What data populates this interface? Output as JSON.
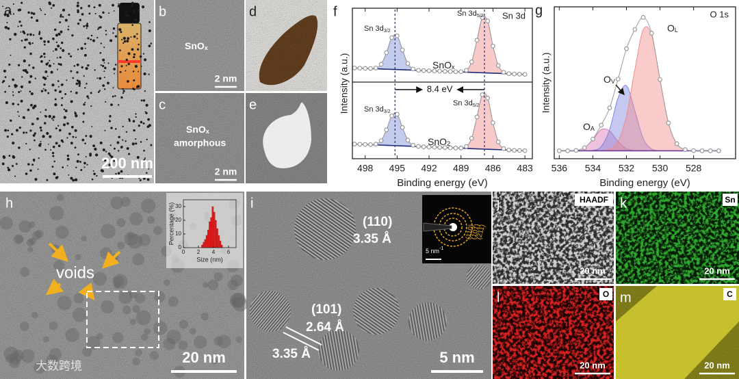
{
  "figure": {
    "a": {
      "label": "a.",
      "scale_bar": "200 nm"
    },
    "b": {
      "label": "b",
      "text": {
        "text": "SnO",
        "sub": "x"
      },
      "scale_bar": "2 nm"
    },
    "c": {
      "label": "c",
      "text": {
        "text": "SnO",
        "sub": "x"
      },
      "line2": "amorphous",
      "scale_bar": "2 nm"
    },
    "d": {
      "label": "d"
    },
    "e": {
      "label": "e"
    },
    "h": {
      "label": "h",
      "annotation": "voids",
      "scale_bar": "20 nm"
    },
    "i": {
      "label": "i",
      "planes": [
        {
          "hkl": "(110)",
          "d": "3.35 Å"
        },
        {
          "hkl": "(101)",
          "d": "2.64 Å"
        },
        {
          "d": "3.35 Å"
        }
      ],
      "scale_bar": "5 nm",
      "saed": {
        "rings": [
          "(211)",
          "(101)",
          "(110)"
        ],
        "scale_bar": {
          "text": "5 nm",
          "sup": "-1"
        }
      }
    },
    "j": {
      "label": "j",
      "element": "HAADF",
      "scale_bar": "20 nm"
    },
    "k": {
      "label": "k",
      "element": "Sn",
      "scale_bar": "20 nm"
    },
    "l": {
      "label": "l",
      "element": "O",
      "scale_bar": "20 nm"
    },
    "m": {
      "label": "m",
      "element": "C",
      "scale_bar": "20 nm"
    }
  },
  "watermark": "大数跨境",
  "chart_data": [
    {
      "type": "xps",
      "panel_label": "f",
      "title": "Sn 3d",
      "xlabel": "Binding energy (eV)",
      "ylabel": "Intensity (a.u.)",
      "xlim": [
        499.2,
        482.3
      ],
      "xticks": [
        498,
        495,
        492,
        489,
        486,
        483
      ],
      "x": [
        499,
        498.5,
        498,
        497.5,
        497,
        496.5,
        496,
        495.5,
        495,
        494.5,
        494,
        493.5,
        493,
        492.5,
        492,
        491.5,
        491,
        490.5,
        490,
        489.5,
        489,
        488.5,
        488,
        487.5,
        487,
        486.5,
        486,
        485.5,
        485,
        484.5,
        484,
        483.5,
        483
      ],
      "shift": {
        "text": "8.4 eV",
        "peak_positions": [
          495.2,
          486.8
        ]
      },
      "subplots": [
        {
          "label": {
            "text": "SnO",
            "sub": "x"
          },
          "peak_labels": [
            {
              "text": "Sn 3d",
              "sub": "3/2"
            },
            {
              "text": "Sn 3d",
              "sub": "5/2"
            }
          ],
          "ylim": [
            -0.1,
            1.05
          ],
          "series": [
            {
              "style": "line",
              "color": "#1f2a7a",
              "values": [
                0.12,
                0.117,
                0.114,
                0.111,
                0.108,
                0.104,
                0.101,
                0.098,
                0.095,
                0.092,
                0.089,
                0.086,
                0.082,
                0.079,
                0.076,
                0.073,
                0.07,
                0.067,
                0.064,
                0.061,
                0.058,
                0.054,
                0.051,
                0.048,
                0.045,
                0.042,
                0.039,
                0.036,
                0.033,
                0.029,
                0.026,
                0.023,
                0.02
              ]
            },
            {
              "style": "fill",
              "color": "#7b8fd8",
              "values": [
                0,
                0,
                0,
                0.001,
                0.012,
                0.074,
                0.258,
                0.494,
                0.525,
                0.308,
                0.1,
                0.018,
                0.002,
                0,
                0,
                0,
                0,
                0,
                0,
                0,
                0,
                0,
                0,
                0,
                0,
                0,
                0,
                0,
                0,
                0,
                0,
                0,
                0
              ]
            },
            {
              "style": "fill",
              "color": "#ef8a8a",
              "values": [
                0,
                0,
                0,
                0,
                0,
                0,
                0,
                0,
                0,
                0,
                0,
                0,
                0,
                0,
                0,
                0,
                0,
                0,
                0,
                0,
                0.003,
                0.03,
                0.164,
                0.504,
                0.859,
                0.809,
                0.422,
                0.122,
                0.02,
                0.002,
                0,
                0,
                0
              ]
            },
            {
              "style": "points",
              "color": "#9a9a9a",
              "values": [
                0.12,
                0.117,
                0.114,
                0.112,
                0.12,
                0.178,
                0.359,
                0.592,
                0.62,
                0.4,
                0.189,
                0.104,
                0.084,
                0.079,
                0.076,
                0.073,
                0.07,
                0.067,
                0.064,
                0.061,
                0.061,
                0.084,
                0.215,
                0.552,
                0.904,
                0.851,
                0.461,
                0.158,
                0.053,
                0.031,
                0.026,
                0.023,
                0.02
              ]
            }
          ]
        },
        {
          "label": {
            "text": "SnO",
            "sub": "2"
          },
          "peak_labels": [
            {
              "text": "Sn 3d",
              "sub": "3/2"
            },
            {
              "text": "Sn 3d",
              "sub": "5/2"
            }
          ],
          "ylim": [
            -0.1,
            1.05
          ],
          "series": [
            {
              "style": "line",
              "color": "#1f2a7a",
              "values": [
                0.12,
                0.117,
                0.114,
                0.111,
                0.108,
                0.104,
                0.101,
                0.098,
                0.095,
                0.092,
                0.089,
                0.086,
                0.082,
                0.079,
                0.076,
                0.073,
                0.07,
                0.067,
                0.064,
                0.061,
                0.058,
                0.054,
                0.051,
                0.048,
                0.045,
                0.042,
                0.039,
                0.036,
                0.033,
                0.029,
                0.026,
                0.023,
                0.02
              ]
            },
            {
              "style": "fill",
              "color": "#7b8fd8",
              "values": [
                0,
                0,
                0,
                0.001,
                0.011,
                0.067,
                0.232,
                0.445,
                0.473,
                0.277,
                0.09,
                0.016,
                0.002,
                0,
                0,
                0,
                0,
                0,
                0,
                0,
                0,
                0,
                0,
                0,
                0,
                0,
                0,
                0,
                0,
                0,
                0,
                0,
                0
              ]
            },
            {
              "style": "fill",
              "color": "#ef8a8a",
              "values": [
                0,
                0,
                0,
                0,
                0,
                0,
                0,
                0,
                0,
                0,
                0,
                0,
                0,
                0,
                0,
                0,
                0,
                0,
                0,
                0,
                0.003,
                0.029,
                0.156,
                0.479,
                0.816,
                0.769,
                0.401,
                0.116,
                0.019,
                0.002,
                0,
                0,
                0
              ]
            },
            {
              "style": "points",
              "color": "#9a9a9a",
              "values": [
                0.12,
                0.117,
                0.114,
                0.112,
                0.119,
                0.171,
                0.333,
                0.543,
                0.568,
                0.369,
                0.179,
                0.102,
                0.084,
                0.079,
                0.076,
                0.073,
                0.07,
                0.067,
                0.064,
                0.061,
                0.061,
                0.083,
                0.207,
                0.527,
                0.861,
                0.811,
                0.44,
                0.152,
                0.052,
                0.031,
                0.026,
                0.023,
                0.02
              ]
            }
          ]
        }
      ]
    },
    {
      "type": "xps",
      "panel_label": "g",
      "title": "O 1s",
      "xlabel": "Binding energy (eV)",
      "ylabel": "Intensity (a.u.)",
      "xlim": [
        536.3,
        525.5
      ],
      "xticks": [
        536,
        534,
        532,
        530,
        528
      ],
      "x": [
        536,
        535.5,
        535,
        534.5,
        534,
        533.5,
        533,
        532.5,
        532,
        531.5,
        531,
        530.5,
        530,
        529.5,
        529,
        528.5,
        528,
        527.5,
        527,
        526.5
      ],
      "subplots": [
        {
          "peak_labels": [
            {
              "text": "O",
              "sub": "A"
            },
            {
              "text": "O",
              "sub": "V"
            },
            {
              "text": "O",
              "sub": "L"
            }
          ],
          "ylim": [
            -0.03,
            1.12
          ],
          "series": [
            {
              "style": "line",
              "color": "#6a3d9a",
              "values": [
                0.03,
                0.03,
                0.03,
                0.03,
                0.03,
                0.03,
                0.03,
                0.03,
                0.03,
                0.03,
                0.03,
                0.03,
                0.03,
                0.03,
                0.03,
                0.03,
                0.03,
                0.03,
                0.03,
                0.03
              ]
            },
            {
              "style": "fill",
              "color": "#d977b5",
              "values": [
                0,
                0,
                0.003,
                0.023,
                0.086,
                0.161,
                0.15,
                0.07,
                0.016,
                0.002,
                0,
                0,
                0,
                0,
                0,
                0,
                0,
                0,
                0,
                0
              ]
            },
            {
              "style": "fill",
              "color": "#7f86e0",
              "values": [
                0,
                0,
                0,
                0,
                0.003,
                0.033,
                0.162,
                0.4,
                0.493,
                0.303,
                0.093,
                0.014,
                0.001,
                0,
                0,
                0,
                0,
                0,
                0,
                0
              ]
            },
            {
              "style": "fill",
              "color": "#f28b8b",
              "values": [
                0,
                0,
                0,
                0,
                0,
                0.001,
                0.013,
                0.073,
                0.264,
                0.614,
                0.917,
                0.877,
                0.538,
                0.211,
                0.053,
                0.009,
                0.001,
                0,
                0,
                0
              ]
            },
            {
              "style": "points",
              "color": "#9a9a9a",
              "values": [
                0.03,
                0.03,
                0.033,
                0.053,
                0.119,
                0.225,
                0.355,
                0.573,
                0.803,
                0.949,
                1.04,
                0.921,
                0.569,
                0.241,
                0.083,
                0.039,
                0.031,
                0.03,
                0.03,
                0.03
              ]
            }
          ]
        }
      ]
    },
    {
      "type": "histogram",
      "xlabel": "Size (nm)",
      "ylabel": "Percentage (%)",
      "color": "#e02020",
      "bins": [
        2.4,
        2.6,
        2.8,
        3,
        3.2,
        3.4,
        3.6,
        3.8,
        4,
        4.2,
        4.4,
        4.6,
        4.8,
        5,
        5.2
      ],
      "values": [
        2,
        4,
        6,
        9,
        13,
        19,
        22,
        30,
        26,
        20,
        14,
        9,
        5,
        2
      ],
      "xlim": [
        0,
        7
      ],
      "xticks": [
        0,
        2,
        4,
        6
      ],
      "ylim": [
        0,
        35
      ],
      "yticks": [
        0,
        10,
        20,
        30
      ]
    }
  ]
}
